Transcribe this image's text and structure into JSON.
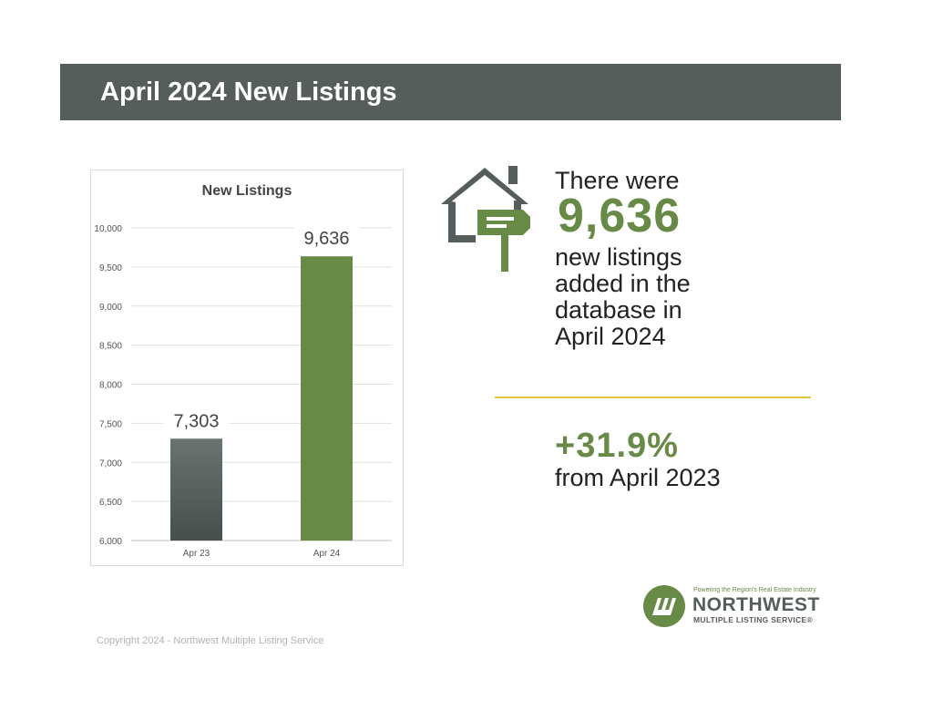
{
  "header": {
    "title": "April 2024 New Listings"
  },
  "chart_data": {
    "type": "bar",
    "title": "New Listings",
    "categories": [
      "Apr 23",
      "Apr 24"
    ],
    "values": [
      7303,
      9636
    ],
    "data_labels": [
      "7,303",
      "9,636"
    ],
    "bar_colors": [
      "#505957",
      "#688a47"
    ],
    "ylim": [
      6000,
      10000
    ],
    "y_ticks": [
      6000,
      6500,
      7000,
      7500,
      8000,
      8500,
      9000,
      9500,
      10000
    ],
    "y_tick_labels": [
      "6,000",
      "6,500",
      "7,000",
      "7,500",
      "8,000",
      "8,500",
      "9,000",
      "9,500",
      "10,000"
    ],
    "grid": true,
    "xlabel": "",
    "ylabel": ""
  },
  "summary": {
    "lead": "There were",
    "count": "9,636",
    "lines": [
      "new listings",
      "added in the",
      "database in",
      "April 2024"
    ],
    "change": "+31.9%",
    "change_label": "from April 2023"
  },
  "logo": {
    "tagline": "Powering the Region's Real Estate Industry",
    "name": "NORTHWEST",
    "subname": "MULTIPLE LISTING SERVICE®"
  },
  "footer": {
    "copyright": "Copyright 2024 - Northwest Multiple Listing Service"
  },
  "colors": {
    "banner": "#565e5b",
    "accent_green": "#688a47",
    "divider": "#e3c640"
  }
}
